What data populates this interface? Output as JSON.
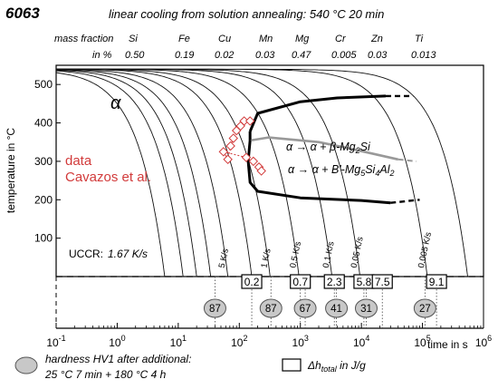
{
  "chart_data": {
    "type": "line",
    "alloy": "6063",
    "title": "linear cooling from solution annealing: 540 °C 20 min",
    "composition": {
      "header_label": "mass fraction",
      "unit_label": "in %",
      "elements": [
        {
          "symbol": "Si",
          "value": "0.50"
        },
        {
          "symbol": "Fe",
          "value": "0.19"
        },
        {
          "symbol": "Cu",
          "value": "0.02"
        },
        {
          "symbol": "Mn",
          "value": "0.03"
        },
        {
          "symbol": "Mg",
          "value": "0.47"
        },
        {
          "symbol": "Cr",
          "value": "0.005"
        },
        {
          "symbol": "Zn",
          "value": "0.03"
        },
        {
          "symbol": "Ti",
          "value": "0.013"
        }
      ]
    },
    "xlabel": "time in s",
    "ylabel": "temperature in °C",
    "xscale": "log",
    "xlim": [
      0.1,
      1000000
    ],
    "ylim": [
      0,
      550
    ],
    "x_ticks": [
      {
        "v": 0.1,
        "base": "10",
        "exp": "-1"
      },
      {
        "v": 1,
        "base": "10",
        "exp": "0"
      },
      {
        "v": 10,
        "base": "10",
        "exp": "1"
      },
      {
        "v": 100,
        "base": "10",
        "exp": "2"
      },
      {
        "v": 1000,
        "base": "10",
        "exp": "3"
      },
      {
        "v": 10000,
        "base": "10",
        "exp": "4"
      },
      {
        "v": 100000,
        "base": "10",
        "exp": "5"
      },
      {
        "v": 1000000,
        "base": "10",
        "exp": "6"
      }
    ],
    "y_ticks": [
      {
        "v": 100,
        "label": "100"
      },
      {
        "v": 200,
        "label": "200"
      },
      {
        "v": 300,
        "label": "300"
      },
      {
        "v": 400,
        "label": "400"
      },
      {
        "v": 500,
        "label": "500"
      }
    ],
    "start_temperature": 540,
    "cooling_curves": [
      {
        "end_time": 6
      },
      {
        "end_time": 12
      },
      {
        "end_time": 20
      },
      {
        "end_time": 34
      },
      {
        "end_time": 65,
        "label": "5 K/s"
      },
      {
        "end_time": 160
      },
      {
        "end_time": 320,
        "label": "1 K/s"
      },
      {
        "end_time": 950,
        "label": "0.5 K/s"
      },
      {
        "end_time": 3300,
        "label": "0.1 K/s"
      },
      {
        "end_time": 9500,
        "label": "0.05 K/s"
      },
      {
        "end_time": 120000,
        "label": "0.005 K/s"
      },
      {
        "end_time": 550000
      }
    ],
    "phase_label": "α",
    "reactions": [
      {
        "name": "upper",
        "text_prefix": "α → α + β-Mg",
        "text_sub": "2",
        "text_suffix": "Si",
        "color": "#000000",
        "solid": [
          [
            150,
            378
          ],
          [
            200,
            425
          ],
          [
            1000,
            455
          ],
          [
            4000,
            465
          ],
          [
            25000,
            470
          ]
        ],
        "dashed": [
          [
            25000,
            470
          ],
          [
            70000,
            470
          ]
        ]
      },
      {
        "name": "lower",
        "text_prefix": "α → α + B'-Mg",
        "text_sub": "5",
        "text_suffix": "Si",
        "text_sub2": "4",
        "text_suffix2": "Al",
        "text_sub3": "2",
        "color": "#000000",
        "solid": [
          [
            150,
            355
          ],
          [
            140,
            300
          ],
          [
            150,
            245
          ],
          [
            200,
            222
          ],
          [
            1000,
            205
          ],
          [
            10000,
            198
          ],
          [
            30000,
            192
          ]
        ],
        "dashed": [
          [
            30000,
            192
          ],
          [
            90000,
            200
          ]
        ]
      },
      {
        "name": "middle-grey",
        "color": "#999999",
        "solid": [
          [
            160,
            355
          ],
          [
            300,
            362
          ],
          [
            2000,
            350
          ],
          [
            8000,
            330
          ],
          [
            40000,
            305
          ]
        ],
        "dashed": [
          [
            40000,
            305
          ],
          [
            80000,
            300
          ]
        ]
      }
    ],
    "cavazos_data": {
      "label_line1": "data",
      "label_line2": "Cavazos et al.",
      "color": "#d23b3b",
      "points": [
        [
          55,
          325
        ],
        [
          65,
          305
        ],
        [
          72,
          340
        ],
        [
          80,
          360
        ],
        [
          90,
          380
        ],
        [
          105,
          392
        ],
        [
          120,
          405
        ],
        [
          150,
          405
        ],
        [
          130,
          310
        ],
        [
          170,
          300
        ],
        [
          210,
          285
        ],
        [
          230,
          275
        ]
      ]
    },
    "uccr": {
      "label": "UCCR:",
      "value": "1.67 K/s"
    },
    "enthalpy_values": [
      {
        "x": 160,
        "label": "0.2"
      },
      {
        "x": 1000,
        "label": "0.7"
      },
      {
        "x": 3600,
        "label": "2.3"
      },
      {
        "x": 11000,
        "label": "5.8"
      },
      {
        "x": 22000,
        "label": "7.5"
      },
      {
        "x": 170000,
        "label": "9.1"
      }
    ],
    "hardness_values": [
      {
        "x": 40,
        "label": "87"
      },
      {
        "x": 330,
        "label": "87"
      },
      {
        "x": 1200,
        "label": "67"
      },
      {
        "x": 3900,
        "label": "41"
      },
      {
        "x": 12000,
        "label": "31"
      },
      {
        "x": 110000,
        "label": "27"
      }
    ],
    "legend": {
      "hardness_line1": "hardness HV1 after additional:",
      "hardness_line2": "25 °C 7 min + 180 °C 4 h",
      "enthalpy_prefix": "Δh",
      "enthalpy_sub": "total",
      "enthalpy_suffix": " in J/g"
    }
  }
}
